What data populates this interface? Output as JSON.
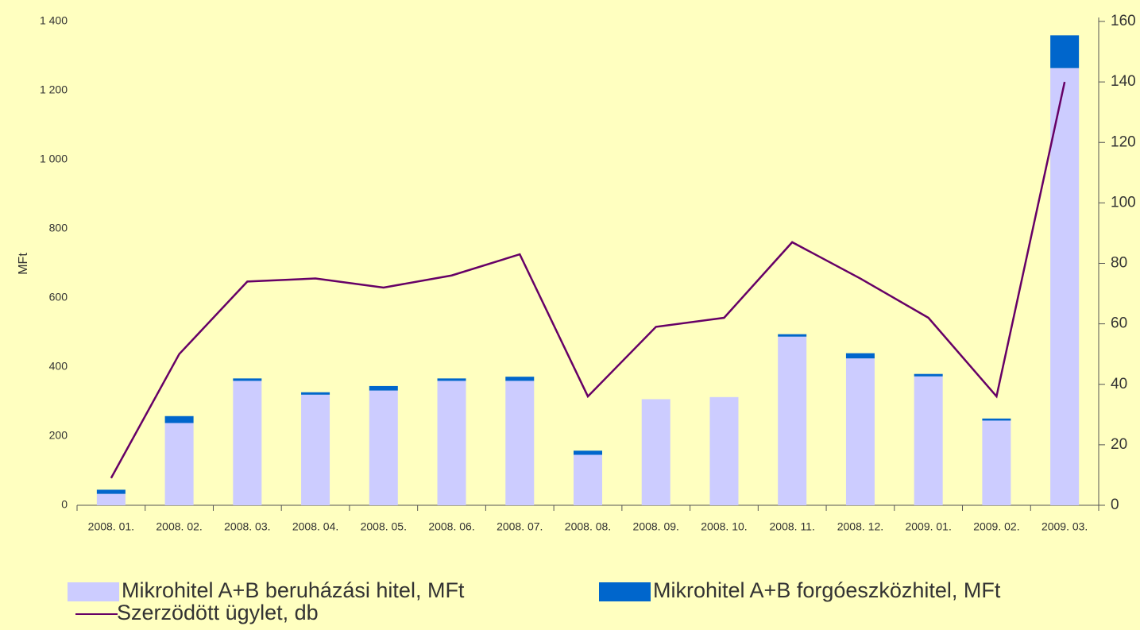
{
  "chart_data": {
    "type": "bar",
    "y_label": "MFt",
    "categories": [
      "2008. 01.",
      "2008. 02.",
      "2008. 03.",
      "2008. 04.",
      "2008. 05.",
      "2008. 06.",
      "2008. 07.",
      "2008. 08.",
      "2008. 09.",
      "2008. 10.",
      "2008. 11.",
      "2008. 12.",
      "2009. 01.",
      "2009. 02.",
      "2009. 03."
    ],
    "series": [
      {
        "name": "Mikrohitel A+B beruházási hitel, MFt",
        "type": "bar",
        "color": "#ccccff",
        "values": [
          33,
          238,
          360,
          320,
          332,
          360,
          360,
          146,
          307,
          313,
          488,
          425,
          373,
          245,
          1265
        ]
      },
      {
        "name": "Mikrohitel A+B forgóeszközhitel, MFt",
        "type": "bar",
        "color": "#0066cc",
        "values": [
          12,
          20,
          7,
          7,
          13,
          7,
          12,
          12,
          0,
          0,
          7,
          15,
          7,
          6,
          95
        ]
      },
      {
        "name": "Szerzödött ügylet, db",
        "type": "line",
        "axis": "y2",
        "color": "#660066",
        "values": [
          9,
          50,
          74,
          75,
          72,
          76,
          83,
          36,
          59,
          62,
          87,
          75,
          62,
          36,
          140
        ]
      }
    ],
    "stacked": true,
    "ylim": [
      0,
      1400
    ],
    "yticks": [
      0,
      200,
      400,
      600,
      800,
      {
        "value": 1000,
        "label": "1 000"
      },
      {
        "value": 1200,
        "label": "1 200"
      },
      {
        "value": 1400,
        "label": "1 400"
      }
    ],
    "y2lim": [
      0,
      160
    ],
    "y2ticks": [
      0,
      20,
      40,
      60,
      80,
      100,
      120,
      140,
      160
    ],
    "legend": "bottom"
  }
}
